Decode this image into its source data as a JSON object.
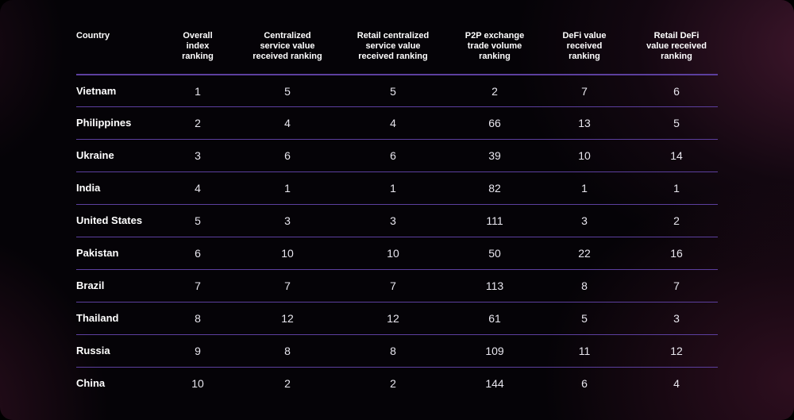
{
  "chart_data": {
    "type": "table",
    "columns": [
      "Country",
      "Overall\nindex\nranking",
      "Centralized\nservice value\nreceived ranking",
      "Retail centralized\nservice value\nreceived ranking",
      "P2P exchange\ntrade volume\nranking",
      "DeFi value\nreceived\nranking",
      "Retail DeFi\nvalue received\nranking"
    ],
    "rows": [
      [
        "Vietnam",
        "1",
        "5",
        "5",
        "2",
        "7",
        "6"
      ],
      [
        "Philippines",
        "2",
        "4",
        "4",
        "66",
        "13",
        "5"
      ],
      [
        "Ukraine",
        "3",
        "6",
        "6",
        "39",
        "10",
        "14"
      ],
      [
        "India",
        "4",
        "1",
        "1",
        "82",
        "1",
        "1"
      ],
      [
        "United States",
        "5",
        "3",
        "3",
        "111",
        "3",
        "2"
      ],
      [
        "Pakistan",
        "6",
        "10",
        "10",
        "50",
        "22",
        "16"
      ],
      [
        "Brazil",
        "7",
        "7",
        "7",
        "113",
        "8",
        "7"
      ],
      [
        "Thailand",
        "8",
        "12",
        "12",
        "61",
        "5",
        "3"
      ],
      [
        "Russia",
        "9",
        "8",
        "8",
        "109",
        "11",
        "12"
      ],
      [
        "China",
        "10",
        "2",
        "2",
        "144",
        "6",
        "4"
      ]
    ],
    "grid_color": "#5c3f9e"
  }
}
